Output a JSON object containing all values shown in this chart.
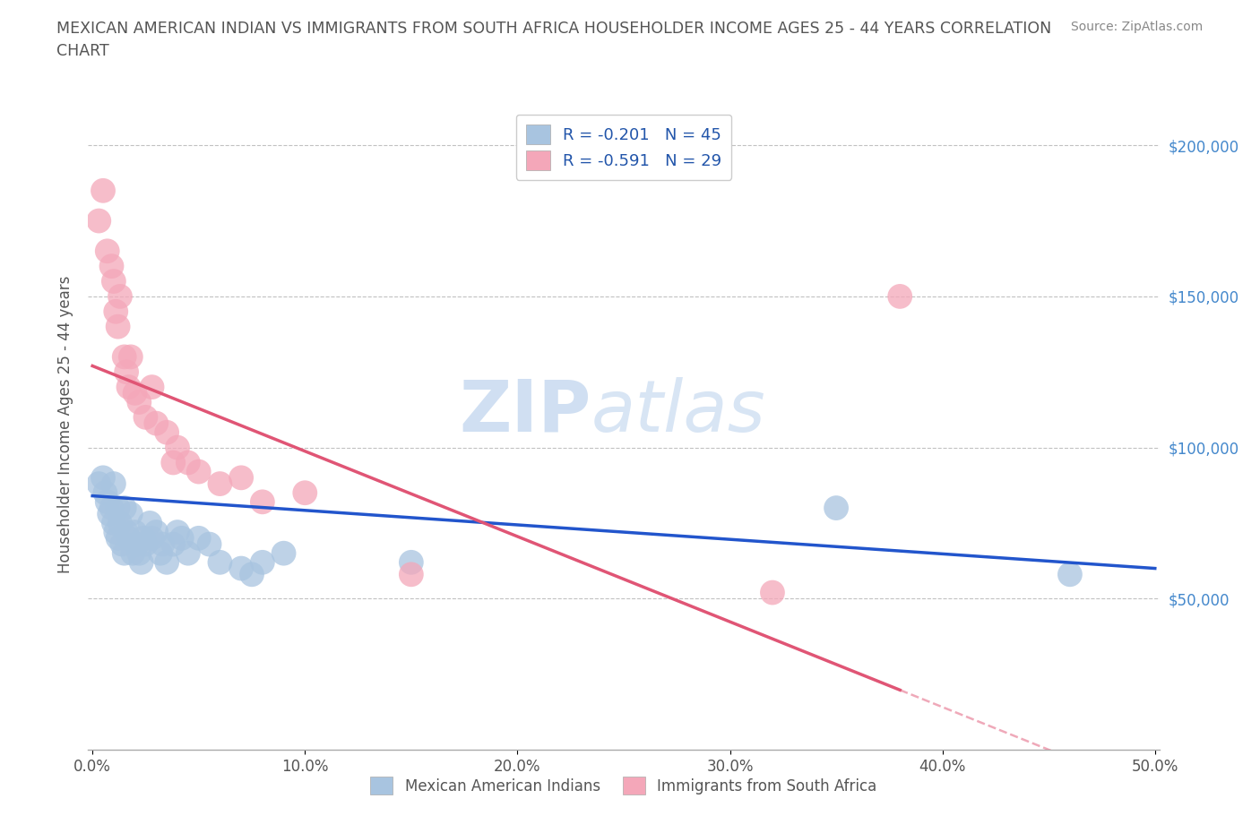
{
  "title": "MEXICAN AMERICAN INDIAN VS IMMIGRANTS FROM SOUTH AFRICA HOUSEHOLDER INCOME AGES 25 - 44 YEARS CORRELATION\nCHART",
  "source": "Source: ZipAtlas.com",
  "ylabel": "Householder Income Ages 25 - 44 years",
  "xlim": [
    -0.002,
    0.502
  ],
  "ylim": [
    0,
    215000
  ],
  "yticks": [
    50000,
    100000,
    150000,
    200000
  ],
  "ytick_labels": [
    "$50,000",
    "$100,000",
    "$150,000",
    "$200,000"
  ],
  "xticks": [
    0.0,
    0.1,
    0.2,
    0.3,
    0.4,
    0.5
  ],
  "xtick_labels": [
    "0.0%",
    "10.0%",
    "20.0%",
    "30.0%",
    "40.0%",
    "50.0%"
  ],
  "blue_color": "#a8c4e0",
  "pink_color": "#f4a7b9",
  "blue_line_color": "#2255cc",
  "pink_line_color": "#e05575",
  "blue_R": -0.201,
  "blue_N": 45,
  "pink_R": -0.591,
  "pink_N": 29,
  "blue_label": "Mexican American Indians",
  "pink_label": "Immigrants from South Africa",
  "watermark_zip": "ZIP",
  "watermark_atlas": "atlas",
  "background_color": "#ffffff",
  "grid_color": "#bbbbbb",
  "ytick_color": "#4488cc",
  "blue_x": [
    0.003,
    0.005,
    0.006,
    0.007,
    0.008,
    0.009,
    0.01,
    0.01,
    0.011,
    0.012,
    0.012,
    0.013,
    0.014,
    0.015,
    0.015,
    0.016,
    0.017,
    0.018,
    0.019,
    0.02,
    0.021,
    0.022,
    0.023,
    0.024,
    0.025,
    0.027,
    0.028,
    0.03,
    0.032,
    0.033,
    0.035,
    0.038,
    0.04,
    0.042,
    0.045,
    0.05,
    0.055,
    0.06,
    0.07,
    0.075,
    0.08,
    0.09,
    0.15,
    0.35,
    0.46
  ],
  "blue_y": [
    88000,
    90000,
    85000,
    82000,
    78000,
    80000,
    88000,
    75000,
    72000,
    80000,
    70000,
    75000,
    68000,
    80000,
    65000,
    72000,
    70000,
    78000,
    65000,
    72000,
    68000,
    65000,
    62000,
    70000,
    68000,
    75000,
    70000,
    72000,
    65000,
    68000,
    62000,
    68000,
    72000,
    70000,
    65000,
    70000,
    68000,
    62000,
    60000,
    58000,
    62000,
    65000,
    62000,
    80000,
    58000
  ],
  "pink_x": [
    0.003,
    0.005,
    0.007,
    0.009,
    0.01,
    0.011,
    0.012,
    0.013,
    0.015,
    0.016,
    0.017,
    0.018,
    0.02,
    0.022,
    0.025,
    0.028,
    0.03,
    0.035,
    0.038,
    0.04,
    0.045,
    0.05,
    0.06,
    0.07,
    0.08,
    0.1,
    0.15,
    0.32,
    0.38
  ],
  "pink_y": [
    175000,
    185000,
    165000,
    160000,
    155000,
    145000,
    140000,
    150000,
    130000,
    125000,
    120000,
    130000,
    118000,
    115000,
    110000,
    120000,
    108000,
    105000,
    95000,
    100000,
    95000,
    92000,
    88000,
    90000,
    82000,
    85000,
    58000,
    52000,
    150000
  ],
  "blue_line_x0": 0.0,
  "blue_line_y0": 84000,
  "blue_line_x1": 0.5,
  "blue_line_y1": 60000,
  "pink_line_x0": 0.0,
  "pink_line_y0": 127000,
  "pink_line_x1": 0.45,
  "pink_line_y1": 0
}
